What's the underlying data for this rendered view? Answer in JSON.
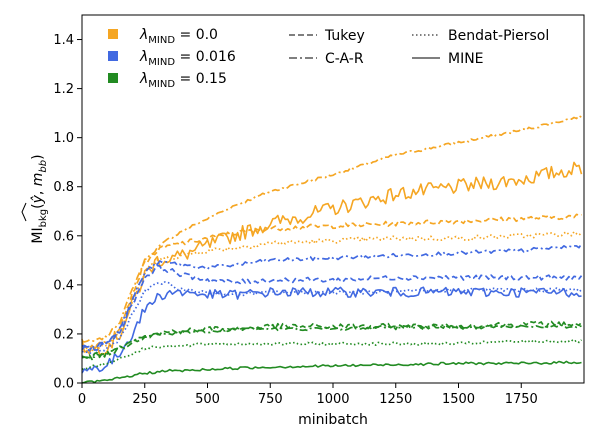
{
  "chart_data": {
    "type": "line",
    "xlabel": "minibatch",
    "ylabel": "MI_bkg(ŷ, m_bb)",
    "xlim": [
      0,
      2000
    ],
    "ylim": [
      0,
      1.5
    ],
    "x_ticks": [
      "0",
      "250",
      "500",
      "750",
      "1000",
      "1250",
      "1500",
      "1750"
    ],
    "y_ticks": [
      "0.0",
      "0.2",
      "0.4",
      "0.6",
      "0.8",
      "1.0",
      "1.2",
      "1.4"
    ],
    "grid": false,
    "legend_placement": "top",
    "colors": {
      "lambda_0": "#f5a623",
      "lambda_016": "#4169e1",
      "lambda_015": "#228b22"
    },
    "lambda_legend": [
      {
        "label_sub": "MIND",
        "value": "= 0.0",
        "color": "#f5a623"
      },
      {
        "label_sub": "MIND",
        "value": "= 0.016",
        "color": "#4169e1"
      },
      {
        "label_sub": "MIND",
        "value": "= 0.15",
        "color": "#228b22"
      }
    ],
    "estimator_legend": [
      {
        "name": "Tukey",
        "style": "dashed"
      },
      {
        "name": "C-A-R",
        "style": "dashdot"
      },
      {
        "name": "Bendat-Piersol",
        "style": "dotted"
      },
      {
        "name": "MINE",
        "style": "solid"
      }
    ],
    "x": [
      0,
      50,
      100,
      150,
      200,
      250,
      300,
      350,
      400,
      500,
      600,
      750,
      1000,
      1250,
      1500,
      1750,
      2000
    ],
    "series": [
      {
        "lambda": "0.0",
        "estimator": "C-A-R",
        "color": "#f5a623",
        "style": "dashdot",
        "noise": 0.006,
        "values": [
          0.17,
          0.17,
          0.19,
          0.25,
          0.38,
          0.5,
          0.55,
          0.59,
          0.62,
          0.67,
          0.72,
          0.78,
          0.85,
          0.93,
          0.98,
          1.03,
          1.09
        ]
      },
      {
        "lambda": "0.0",
        "estimator": "MINE",
        "color": "#f5a623",
        "style": "solid",
        "noise": 0.03,
        "values": [
          0.15,
          0.14,
          0.15,
          0.2,
          0.32,
          0.44,
          0.5,
          0.51,
          0.52,
          0.56,
          0.6,
          0.65,
          0.71,
          0.77,
          0.8,
          0.83,
          0.88
        ]
      },
      {
        "lambda": "0.0",
        "estimator": "Tukey",
        "color": "#f5a623",
        "style": "dashed",
        "noise": 0.01,
        "values": [
          0.15,
          0.15,
          0.17,
          0.23,
          0.36,
          0.49,
          0.54,
          0.56,
          0.57,
          0.59,
          0.61,
          0.63,
          0.64,
          0.65,
          0.66,
          0.67,
          0.68
        ]
      },
      {
        "lambda": "0.0",
        "estimator": "Bendat-Piersol",
        "color": "#f5a623",
        "style": "dotted",
        "noise": 0.01,
        "values": [
          0.14,
          0.14,
          0.16,
          0.21,
          0.33,
          0.45,
          0.5,
          0.51,
          0.52,
          0.54,
          0.55,
          0.57,
          0.58,
          0.59,
          0.59,
          0.6,
          0.61
        ]
      },
      {
        "lambda": "0.016",
        "estimator": "C-A-R",
        "color": "#4169e1",
        "style": "dashdot",
        "noise": 0.008,
        "values": [
          0.15,
          0.15,
          0.17,
          0.22,
          0.34,
          0.45,
          0.49,
          0.49,
          0.48,
          0.47,
          0.48,
          0.5,
          0.51,
          0.52,
          0.53,
          0.54,
          0.56
        ]
      },
      {
        "lambda": "0.016",
        "estimator": "Tukey",
        "color": "#4169e1",
        "style": "dashed",
        "noise": 0.01,
        "values": [
          0.14,
          0.14,
          0.16,
          0.21,
          0.32,
          0.43,
          0.47,
          0.46,
          0.44,
          0.42,
          0.41,
          0.42,
          0.42,
          0.43,
          0.43,
          0.43,
          0.43
        ]
      },
      {
        "lambda": "0.016",
        "estimator": "Bendat-Piersol",
        "color": "#4169e1",
        "style": "dotted",
        "noise": 0.008,
        "values": [
          0.12,
          0.12,
          0.14,
          0.18,
          0.28,
          0.37,
          0.41,
          0.4,
          0.38,
          0.37,
          0.36,
          0.37,
          0.37,
          0.37,
          0.38,
          0.38,
          0.38
        ]
      },
      {
        "lambda": "0.016",
        "estimator": "MINE",
        "color": "#4169e1",
        "style": "solid",
        "noise": 0.02,
        "values": [
          0.05,
          0.06,
          0.07,
          0.12,
          0.2,
          0.3,
          0.35,
          0.37,
          0.37,
          0.36,
          0.36,
          0.37,
          0.37,
          0.37,
          0.37,
          0.37,
          0.37
        ]
      },
      {
        "lambda": "0.15",
        "estimator": "Tukey",
        "color": "#228b22",
        "style": "dashed",
        "noise": 0.012,
        "values": [
          0.1,
          0.11,
          0.12,
          0.14,
          0.17,
          0.19,
          0.2,
          0.21,
          0.21,
          0.22,
          0.22,
          0.23,
          0.23,
          0.23,
          0.23,
          0.24,
          0.24
        ]
      },
      {
        "lambda": "0.15",
        "estimator": "C-A-R",
        "color": "#228b22",
        "style": "dashdot",
        "noise": 0.006,
        "values": [
          0.1,
          0.11,
          0.12,
          0.14,
          0.17,
          0.19,
          0.2,
          0.2,
          0.21,
          0.21,
          0.22,
          0.22,
          0.22,
          0.23,
          0.23,
          0.23,
          0.23
        ]
      },
      {
        "lambda": "0.15",
        "estimator": "Bendat-Piersol",
        "color": "#228b22",
        "style": "dotted",
        "noise": 0.006,
        "values": [
          0.06,
          0.07,
          0.08,
          0.1,
          0.12,
          0.14,
          0.15,
          0.15,
          0.15,
          0.16,
          0.16,
          0.16,
          0.16,
          0.16,
          0.16,
          0.17,
          0.17
        ]
      },
      {
        "lambda": "0.15",
        "estimator": "MINE",
        "color": "#228b22",
        "style": "solid",
        "noise": 0.005,
        "values": [
          0.0,
          0.005,
          0.01,
          0.02,
          0.03,
          0.04,
          0.045,
          0.05,
          0.05,
          0.055,
          0.06,
          0.065,
          0.07,
          0.075,
          0.08,
          0.08,
          0.085
        ]
      }
    ]
  }
}
